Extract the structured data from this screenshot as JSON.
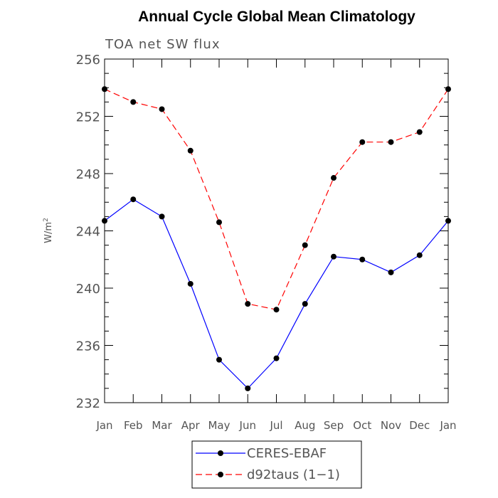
{
  "chart_data": {
    "type": "line",
    "title": "Annual Cycle Global Mean Climatology",
    "subtitle": "TOA net SW flux",
    "xlabel": "",
    "ylabel": "W/m",
    "ylabel_superscript": "2",
    "categories": [
      "Jan",
      "Feb",
      "Mar",
      "Apr",
      "May",
      "Jun",
      "Jul",
      "Aug",
      "Sep",
      "Oct",
      "Nov",
      "Dec",
      "Jan"
    ],
    "ylim": [
      232,
      256
    ],
    "yticks": [
      "232",
      "236",
      "240",
      "244",
      "248",
      "252",
      "256"
    ],
    "series": [
      {
        "name": "CERES-EBAF",
        "color": "#0000ff",
        "dashed": false,
        "values": [
          244.7,
          246.2,
          245.0,
          240.3,
          235.0,
          233.0,
          235.1,
          238.9,
          242.2,
          242.0,
          241.1,
          242.3,
          244.7
        ]
      },
      {
        "name": "d92taus (1-1)",
        "color": "#ff0000",
        "dashed": true,
        "values": [
          253.9,
          253.0,
          252.5,
          249.6,
          244.6,
          238.9,
          238.5,
          243.0,
          247.7,
          250.2,
          250.2,
          250.9,
          253.9
        ]
      }
    ],
    "legend": {
      "position": "bottom-center",
      "entries": [
        "CERES-EBAF",
        "d92taus (1−1)"
      ]
    }
  }
}
